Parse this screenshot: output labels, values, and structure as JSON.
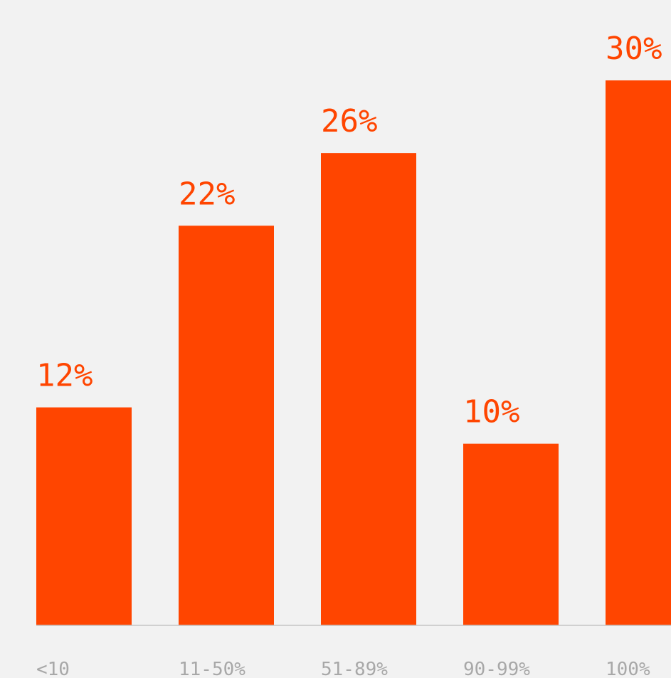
{
  "chart_data": {
    "type": "bar",
    "categories": [
      "<10",
      "11-50%",
      "51-89%",
      "90-99%",
      "100%"
    ],
    "values": [
      12,
      22,
      26,
      10,
      30
    ],
    "value_labels": [
      "12%",
      "22%",
      "26%",
      "10%",
      "30%"
    ],
    "ylim": [
      0,
      30
    ],
    "grid": false,
    "legend": "none",
    "colors": {
      "bar": "#ff4500",
      "axis": "#c4c4c4",
      "label": "#a8a8a8",
      "background": "#f2f2f2"
    }
  }
}
